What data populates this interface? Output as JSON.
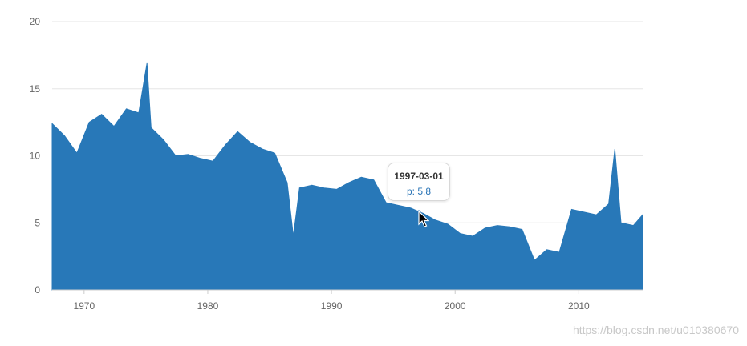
{
  "chart_data": {
    "type": "area",
    "x": [
      "1967-06",
      "1968-06",
      "1969-06",
      "1970-06",
      "1971-06",
      "1972-06",
      "1973-06",
      "1974-06",
      "1975-02",
      "1975-06",
      "1976-06",
      "1977-06",
      "1978-06",
      "1979-06",
      "1980-06",
      "1981-06",
      "1982-06",
      "1983-06",
      "1984-06",
      "1985-06",
      "1986-06",
      "1986-12",
      "1987-06",
      "1988-06",
      "1989-06",
      "1990-06",
      "1991-06",
      "1992-06",
      "1993-06",
      "1994-06",
      "1995-06",
      "1996-06",
      "1997-03",
      "1997-06",
      "1998-06",
      "1999-06",
      "2000-06",
      "2001-06",
      "2002-06",
      "2003-06",
      "2004-06",
      "2005-06",
      "2006-06",
      "2007-06",
      "2008-06",
      "2009-06",
      "2010-06",
      "2011-06",
      "2012-06",
      "2012-12",
      "2013-06",
      "2014-06",
      "2015-03"
    ],
    "series": [
      {
        "values": [
          12.4,
          11.5,
          10.2,
          12.5,
          13.1,
          12.2,
          13.5,
          13.2,
          16.9,
          12.1,
          11.2,
          10.0,
          10.1,
          9.8,
          9.6,
          10.8,
          11.8,
          11.0,
          10.5,
          10.2,
          8.0,
          4.0,
          7.6,
          7.8,
          7.6,
          7.5,
          8.0,
          8.4,
          8.2,
          6.5,
          6.3,
          6.1,
          5.8,
          5.7,
          5.2,
          4.9,
          4.2,
          4.0,
          4.6,
          4.8,
          4.7,
          4.5,
          2.2,
          3.0,
          2.8,
          6.0,
          5.8,
          5.6,
          6.4,
          10.5,
          5.0,
          4.8,
          5.6
        ],
        "color": "#2878b8"
      }
    ],
    "xaxis": {
      "ticks": [
        "1970",
        "1980",
        "1990",
        "2000",
        "2010"
      ],
      "range": [
        "1967-06",
        "2015-03"
      ]
    },
    "yaxis": {
      "ticks": [
        "0",
        "5",
        "10",
        "15",
        "20"
      ],
      "range": [
        0,
        20
      ]
    },
    "grid": true,
    "legend": "none",
    "tooltip": {
      "date": "1997-03-01",
      "label": "p: 5.8",
      "label_color": "#2a74b6"
    }
  },
  "watermark": "https://blog.csdn.net/u010380670"
}
